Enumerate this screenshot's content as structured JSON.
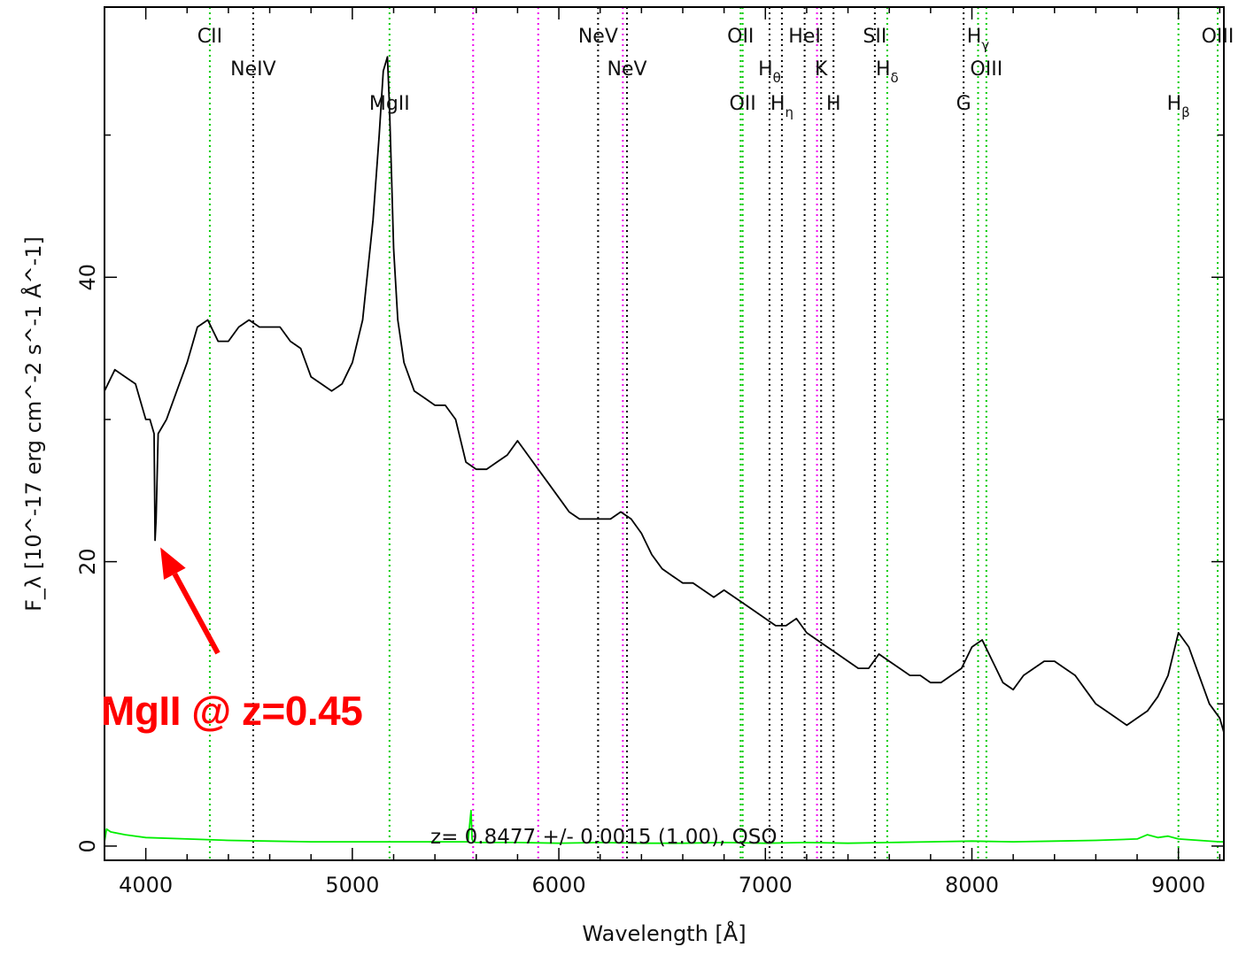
{
  "chart_data": {
    "type": "line",
    "title": "",
    "xlabel": "Wavelength [Å]",
    "ylabel": "F_λ [10^-17 erg cm^-2 s^-1 Å^-1]",
    "xlim": [
      3800,
      9220
    ],
    "ylim": [
      -1,
      59
    ],
    "x_ticks": [
      4000,
      5000,
      6000,
      7000,
      8000,
      9000
    ],
    "y_ticks": [
      0,
      20,
      40
    ],
    "redshift_label": "z= 0.8477 +/- 0.0015 (1.00), QSO",
    "series": [
      {
        "color": "#000000",
        "x": [
          3800,
          3850,
          3900,
          3950,
          4000,
          4020,
          4040,
          4045,
          4050,
          4060,
          4100,
          4150,
          4200,
          4250,
          4300,
          4350,
          4400,
          4450,
          4500,
          4550,
          4600,
          4650,
          4700,
          4750,
          4800,
          4850,
          4900,
          4950,
          5000,
          5050,
          5100,
          5130,
          5150,
          5170,
          5180,
          5190,
          5200,
          5220,
          5250,
          5300,
          5350,
          5400,
          5450,
          5500,
          5550,
          5600,
          5650,
          5700,
          5750,
          5800,
          5850,
          5900,
          5950,
          6000,
          6050,
          6100,
          6150,
          6200,
          6250,
          6300,
          6350,
          6400,
          6450,
          6500,
          6550,
          6600,
          6650,
          6700,
          6750,
          6800,
          6850,
          6900,
          6950,
          7000,
          7050,
          7100,
          7150,
          7200,
          7250,
          7300,
          7350,
          7400,
          7450,
          7500,
          7550,
          7600,
          7650,
          7700,
          7750,
          7800,
          7850,
          7900,
          7950,
          8000,
          8050,
          8100,
          8150,
          8200,
          8250,
          8300,
          8350,
          8400,
          8450,
          8500,
          8550,
          8600,
          8650,
          8700,
          8750,
          8800,
          8850,
          8900,
          8950,
          9000,
          9050,
          9100,
          9150,
          9200,
          9220
        ],
        "y": [
          32,
          33.5,
          33,
          32.5,
          30,
          30,
          29,
          21.5,
          23,
          29,
          30,
          32,
          34,
          36.5,
          37,
          35.5,
          35.5,
          36.5,
          37,
          36.5,
          36.5,
          36.5,
          35.5,
          35,
          33,
          32.5,
          32,
          32.5,
          34,
          37,
          44,
          50,
          54.5,
          55.5,
          52,
          47,
          42,
          37,
          34,
          32,
          31.5,
          31,
          31,
          30,
          27,
          26.5,
          26.5,
          27,
          27.5,
          28.5,
          27.5,
          26.5,
          25.5,
          24.5,
          23.5,
          23,
          23,
          23,
          23,
          23.5,
          23,
          22,
          20.5,
          19.5,
          19,
          18.5,
          18.5,
          18,
          17.5,
          18,
          17.5,
          17,
          16.5,
          16,
          15.5,
          15.5,
          16,
          15,
          14.5,
          14,
          13.5,
          13,
          12.5,
          12.5,
          13.5,
          13,
          12.5,
          12,
          12,
          11.5,
          11.5,
          12,
          12.5,
          14,
          14.5,
          13,
          11.5,
          11,
          12,
          12.5,
          13,
          13,
          12.5,
          12,
          11,
          10,
          9.5,
          9,
          8.5,
          9,
          9.5,
          10.5,
          12,
          15,
          14,
          12,
          10,
          9,
          8
        ]
      },
      {
        "color": "#00ee00",
        "x": [
          3800,
          3810,
          3830,
          3900,
          4000,
          4200,
          4400,
          4600,
          4800,
          5000,
          5200,
          5400,
          5560,
          5575,
          5580,
          5585,
          5600,
          5800,
          6000,
          6200,
          6400,
          6600,
          6800,
          7000,
          7200,
          7400,
          7600,
          7800,
          8000,
          8200,
          8400,
          8600,
          8800,
          8850,
          8900,
          8950,
          9000,
          9200,
          9220
        ],
        "y": [
          0.3,
          1.2,
          1.0,
          0.8,
          0.6,
          0.5,
          0.4,
          0.35,
          0.3,
          0.3,
          0.3,
          0.3,
          0.3,
          2.5,
          0.5,
          0.3,
          0.25,
          0.25,
          0.2,
          0.25,
          0.2,
          0.2,
          0.25,
          0.2,
          0.25,
          0.2,
          0.25,
          0.3,
          0.35,
          0.3,
          0.35,
          0.4,
          0.5,
          0.8,
          0.6,
          0.7,
          0.5,
          0.3,
          0.3
        ]
      }
    ],
    "line_markers": [
      {
        "x": 4310,
        "color": "#00cc00",
        "label": "CII",
        "row": 1
      },
      {
        "x": 4520,
        "color": "#000000",
        "label": "NeIV",
        "row": 2
      },
      {
        "x": 5180,
        "color": "#00cc00",
        "label": "MgII",
        "row": 3
      },
      {
        "x": 5585,
        "color": "#ee00ee",
        "label": ""
      },
      {
        "x": 5900,
        "color": "#ee00ee",
        "label": ""
      },
      {
        "x": 6190,
        "color": "#000000",
        "label": "NeV",
        "row": 1
      },
      {
        "x": 6310,
        "color": "#ee00ee",
        "label": ""
      },
      {
        "x": 6330,
        "color": "#000000",
        "label": "NeV",
        "row": 2
      },
      {
        "x": 6880,
        "color": "#00cc00",
        "label": "OII",
        "row": 1
      },
      {
        "x": 6890,
        "color": "#00cc00",
        "label": "OII",
        "row": 3
      },
      {
        "x": 7020,
        "color": "#000000",
        "label": "Hθ",
        "row": 2
      },
      {
        "x": 7080,
        "color": "#000000",
        "label": "Hη",
        "row": 3
      },
      {
        "x": 7190,
        "color": "#000000",
        "label": "HeI",
        "row": 1
      },
      {
        "x": 7250,
        "color": "#ee00ee",
        "label": ""
      },
      {
        "x": 7270,
        "color": "#000000",
        "label": "K",
        "row": 2
      },
      {
        "x": 7330,
        "color": "#000000",
        "label": "H",
        "row": 3
      },
      {
        "x": 7530,
        "color": "#000000",
        "label": "SII",
        "row": 1
      },
      {
        "x": 7590,
        "color": "#00cc00",
        "label": "Hδ",
        "row": 2
      },
      {
        "x": 7960,
        "color": "#000000",
        "label": "G",
        "row": 3
      },
      {
        "x": 8030,
        "color": "#00cc00",
        "label": "Hγ",
        "row": 1
      },
      {
        "x": 8070,
        "color": "#00cc00",
        "label": "OIII",
        "row": 2
      },
      {
        "x": 9000,
        "color": "#00cc00",
        "label": "Hβ",
        "row": 3
      },
      {
        "x": 9190,
        "color": "#00cc00",
        "label": "OIII",
        "row": 1
      }
    ],
    "annotation": {
      "text": "MgII @ z=0.45",
      "color": "#ff0000",
      "points_to": {
        "x": 4045,
        "y": 21.5
      }
    }
  }
}
